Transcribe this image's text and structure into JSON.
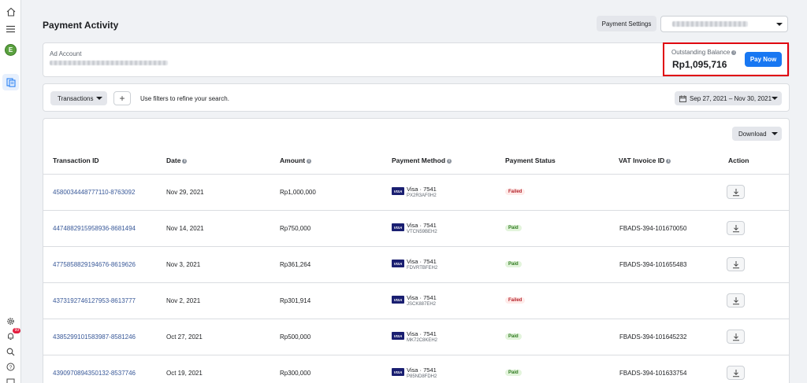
{
  "rail": {
    "home_icon": "home-icon",
    "menu_icon": "menu-icon",
    "avatar_letter": "E",
    "billing_icon": "billing-icon",
    "settings_icon": "gear-icon",
    "notifications_badge": "99",
    "search_icon": "search-icon",
    "help_icon": "help-icon"
  },
  "header": {
    "title": "Payment Activity",
    "payment_settings_label": "Payment Settings"
  },
  "account": {
    "label": "Ad Account",
    "outstanding_label": "Outstanding Balance",
    "outstanding_amount": "Rp1,095,716",
    "pay_now_label": "Pay Now"
  },
  "filters": {
    "transactions_label": "Transactions",
    "plus_label": "+",
    "hint": "Use filters to refine your search.",
    "date_range": "Sep 27, 2021 – Nov 30, 2021"
  },
  "table": {
    "download_label": "Download",
    "columns": {
      "id": "Transaction ID",
      "date": "Date",
      "amount": "Amount",
      "method": "Payment Method",
      "status": "Payment Status",
      "vat": "VAT Invoice ID",
      "action": "Action"
    },
    "rows": [
      {
        "id": "4580034448777110-8763092",
        "date": "Nov 29, 2021",
        "amount": "Rp1,000,000",
        "card": "Visa · 7541",
        "ref": "PX2R3AF0H2",
        "status": "Failed",
        "vat": ""
      },
      {
        "id": "4474882915958936-8681494",
        "date": "Nov 14, 2021",
        "amount": "Rp750,000",
        "card": "Visa · 7541",
        "ref": "VTCN59BEH2",
        "status": "Paid",
        "vat": "FBADS-394-101670050"
      },
      {
        "id": "4775858829194676-8619626",
        "date": "Nov 3, 2021",
        "amount": "Rp361,264",
        "card": "Visa · 7541",
        "ref": "FDVRTBFEH2",
        "status": "Paid",
        "vat": "FBADS-394-101655483"
      },
      {
        "id": "4373192746127953-8613777",
        "date": "Nov 2, 2021",
        "amount": "Rp301,914",
        "card": "Visa · 7541",
        "ref": "JSCK887EH2",
        "status": "Failed",
        "vat": ""
      },
      {
        "id": "4385299101583987-8581246",
        "date": "Oct 27, 2021",
        "amount": "Rp500,000",
        "card": "Visa · 7541",
        "ref": "MK72C8KEH2",
        "status": "Paid",
        "vat": "FBADS-394-101645232"
      },
      {
        "id": "4390970894350132-8537746",
        "date": "Oct 19, 2021",
        "amount": "Rp300,000",
        "card": "Visa · 7541",
        "ref": "P85ND8FDH2",
        "status": "Paid",
        "vat": "FBADS-394-101633754"
      }
    ]
  },
  "colors": {
    "accent": "#1877f2",
    "highlight": "#e0000f",
    "failed": "#b4232c",
    "paid": "#2f7a1f"
  }
}
